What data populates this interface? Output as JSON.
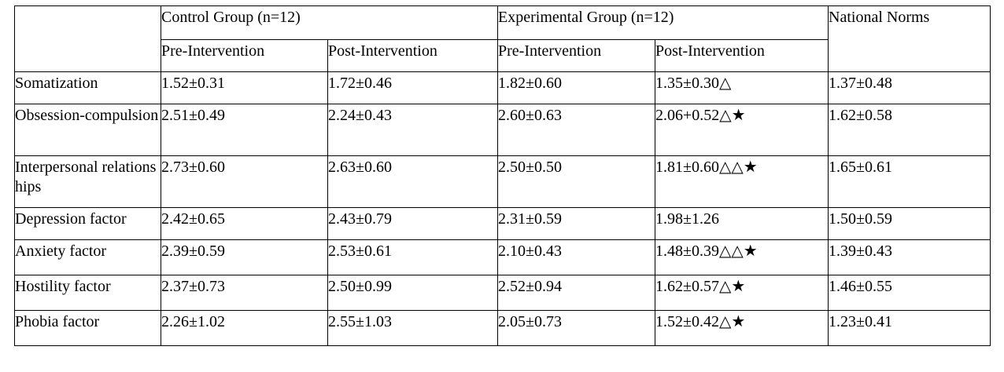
{
  "table": {
    "group_headers": {
      "control": "Control Group (n=12)",
      "experimental": "Experimental Group (n=12)",
      "norms": "National Norms"
    },
    "sub_headers": {
      "control_pre": "Pre-Intervention",
      "control_post": "Post-Intervention",
      "exp_pre": "Pre-Intervention",
      "exp_post": "Post-Intervention"
    },
    "rows": [
      {
        "factor": "Somatization",
        "ctrl_pre": "1.52±0.31",
        "ctrl_post": "1.72±0.46",
        "exp_pre": "1.82±0.60",
        "exp_post": "1.35±0.30△",
        "norms": "1.37±0.48"
      },
      {
        "factor": "Obsession-compulsion",
        "ctrl_pre": "2.51±0.49",
        "ctrl_post": "2.24±0.43",
        "exp_pre": "2.60±0.63",
        "exp_post": "2.06+0.52△★",
        "norms": "1.62±0.58"
      },
      {
        "factor": "Interpersonal relationships",
        "ctrl_pre": "2.73±0.60",
        "ctrl_post": "2.63±0.60",
        "exp_pre": "2.50±0.50",
        "exp_post": "1.81±0.60△△★",
        "norms": "1.65±0.61"
      },
      {
        "factor": "Depression factor",
        "ctrl_pre": "2.42±0.65",
        "ctrl_post": "2.43±0.79",
        "exp_pre": "2.31±0.59",
        "exp_post": "1.98±1.26",
        "norms": "1.50±0.59"
      },
      {
        "factor": "Anxiety factor",
        "ctrl_pre": "2.39±0.59",
        "ctrl_post": "2.53±0.61",
        "exp_pre": "2.10±0.43",
        "exp_post": "1.48±0.39△△★",
        "norms": "1.39±0.43"
      },
      {
        "factor": "Hostility factor",
        "ctrl_pre": "2.37±0.73",
        "ctrl_post": "2.50±0.99",
        "exp_pre": "2.52±0.94",
        "exp_post": "1.62±0.57△★",
        "norms": "1.46±0.55"
      },
      {
        "factor": "Phobia factor",
        "ctrl_pre": "2.26±1.02",
        "ctrl_post": "2.55±1.03",
        "exp_pre": "2.05±0.73",
        "exp_post": "1.52±0.42△★",
        "norms": "1.23±0.41"
      }
    ]
  }
}
